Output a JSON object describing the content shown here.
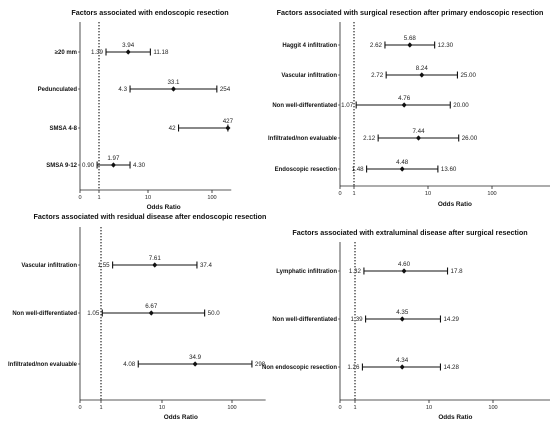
{
  "chart_data": [
    {
      "type": "forest",
      "title": "Factors associated with endoscopic resection",
      "xlabel": "Odds Ratio",
      "xlim": [
        0,
        500
      ],
      "xticks": [
        "0",
        "1",
        "10",
        "100"
      ],
      "rows": [
        {
          "label": "≥20 mm",
          "or": 3.94,
          "lo": 1.39,
          "hi": 11.18,
          "or_label": "3.94",
          "lo_label": "1.39",
          "hi_label": "11.18"
        },
        {
          "label": "Pedunculated",
          "or": 33.1,
          "lo": 4.3,
          "hi": 254,
          "or_label": "33.1",
          "lo_label": "4.3",
          "hi_label": "254"
        },
        {
          "label": "SMSA 4-8",
          "or": 427,
          "lo": 42,
          "hi": 427,
          "or_label": "427",
          "lo_label": "42",
          "hi_label": ""
        },
        {
          "label": "SMSA 9-12",
          "or": 1.97,
          "lo": 0.9,
          "hi": 4.3,
          "or_label": "1.97",
          "lo_label": "0.90",
          "hi_label": "4.30"
        }
      ]
    },
    {
      "type": "forest",
      "title": "Factors associated with surgical resection after primary endoscopic resection",
      "xlabel": "Odds Ratio",
      "xlim": [
        0,
        500
      ],
      "xticks": [
        "0",
        "1",
        "10",
        "100"
      ],
      "rows": [
        {
          "label": "Haggit 4 infiltration",
          "or": 5.68,
          "lo": 2.62,
          "hi": 12.3,
          "or_label": "5.68",
          "lo_label": "2.62",
          "hi_label": "12.30"
        },
        {
          "label": "Vascular infiltration",
          "or": 8.24,
          "lo": 2.72,
          "hi": 25.0,
          "or_label": "8.24",
          "lo_label": "2.72",
          "hi_label": "25.00"
        },
        {
          "label": "Non well-differentiated",
          "or": 4.76,
          "lo": 1.07,
          "hi": 20.0,
          "or_label": "4.76",
          "lo_label": "1.07",
          "hi_label": "20.00"
        },
        {
          "label": "Infiltrated/non evaluable",
          "or": 7.44,
          "lo": 2.12,
          "hi": 26.0,
          "or_label": "7.44",
          "lo_label": "2.12",
          "hi_label": "26.00"
        },
        {
          "label": "Endoscopic resection",
          "or": 4.48,
          "lo": 1.48,
          "hi": 13.6,
          "or_label": "4.48",
          "lo_label": "1.48",
          "hi_label": "13.60"
        }
      ]
    },
    {
      "type": "forest",
      "title": "Factors associated with residual disease after endoscopic resection",
      "xlabel": "Odds Ratio",
      "xlim": [
        0,
        500
      ],
      "xticks": [
        "0",
        "1",
        "10",
        "100"
      ],
      "rows": [
        {
          "label": "Vascular infiltration",
          "or": 7.61,
          "lo": 1.55,
          "hi": 37.4,
          "or_label": "7.61",
          "lo_label": "1.55",
          "hi_label": "37.4"
        },
        {
          "label": "Non well-differentiated",
          "or": 6.67,
          "lo": 1.05,
          "hi": 50.0,
          "or_label": "6.67",
          "lo_label": "1.05",
          "hi_label": "50.0"
        },
        {
          "label": "Infiltrated/non evaluable",
          "or": 34.9,
          "lo": 4.08,
          "hi": 298,
          "or_label": "34.9",
          "lo_label": "4.08",
          "hi_label": "298"
        }
      ]
    },
    {
      "type": "forest",
      "title": "Factors associated with extraluminal disease after surgical resection",
      "xlabel": "Odds Ratio",
      "xlim": [
        0,
        500
      ],
      "xticks": [
        "0",
        "1",
        "10",
        "100"
      ],
      "rows": [
        {
          "label": "Lymphatic infiltration",
          "or": 4.6,
          "lo": 1.32,
          "hi": 17.8,
          "or_label": "4.60",
          "lo_label": "1.32",
          "hi_label": "17.8"
        },
        {
          "label": "Non well-differentiated",
          "or": 4.35,
          "lo": 1.39,
          "hi": 14.29,
          "or_label": "4.35",
          "lo_label": "1.39",
          "hi_label": "14.29"
        },
        {
          "label": "Non endoscopic resection",
          "or": 4.34,
          "lo": 1.26,
          "hi": 14.28,
          "or_label": "4.34",
          "lo_label": "1.26",
          "hi_label": "14.28"
        }
      ]
    }
  ]
}
